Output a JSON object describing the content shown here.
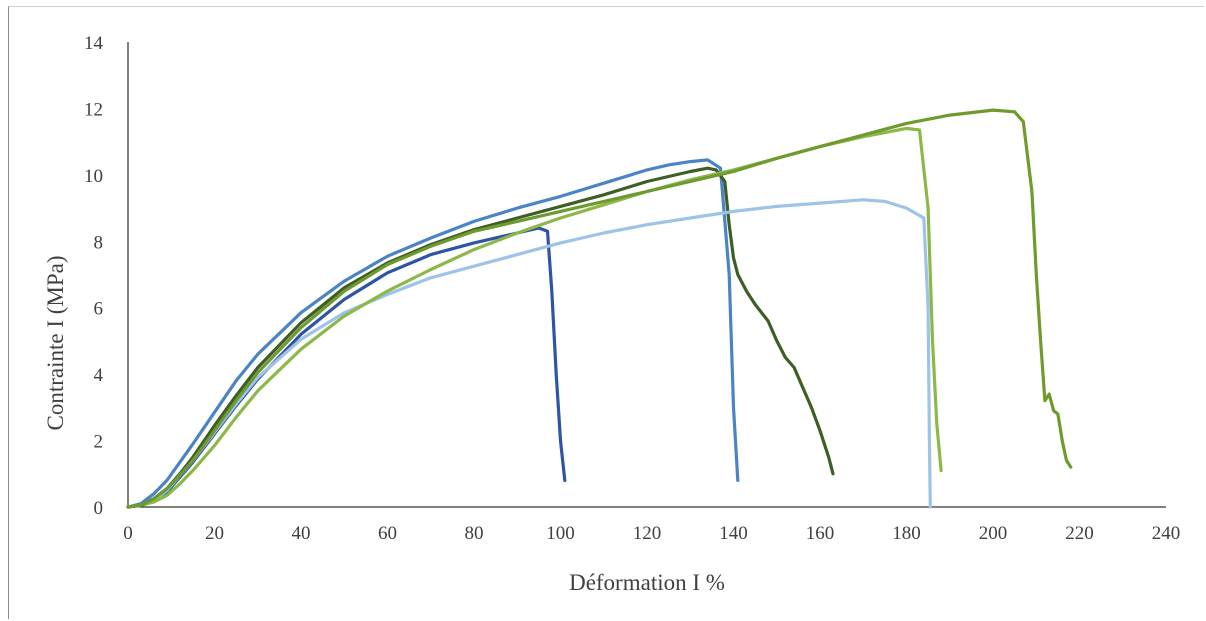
{
  "chart_data": {
    "type": "line",
    "title": "",
    "xlabel": "Déformation I %",
    "ylabel": "Contrainte I (MPa)",
    "xlim": [
      0,
      240
    ],
    "ylim": [
      0,
      14
    ],
    "xticks": [
      0,
      20,
      40,
      60,
      80,
      100,
      120,
      140,
      160,
      180,
      200,
      220,
      240
    ],
    "yticks": [
      0,
      2,
      4,
      6,
      8,
      10,
      12,
      14
    ],
    "grid": false,
    "legend": "none",
    "series": [
      {
        "color": "#2e55a4",
        "x": [
          0,
          3,
          6,
          9,
          12,
          15,
          20,
          25,
          30,
          40,
          50,
          60,
          70,
          80,
          90,
          95,
          97,
          98,
          99,
          100,
          101
        ],
        "y": [
          0,
          0.05,
          0.2,
          0.45,
          0.9,
          1.35,
          2.2,
          3.05,
          3.85,
          5.2,
          6.25,
          7.05,
          7.6,
          7.95,
          8.25,
          8.4,
          8.3,
          6.5,
          4.0,
          2.0,
          0.8
        ]
      },
      {
        "color": "#4a84c4",
        "x": [
          0,
          3,
          6,
          9,
          12,
          15,
          20,
          25,
          30,
          40,
          50,
          60,
          70,
          80,
          90,
          100,
          110,
          120,
          125,
          130,
          134,
          137,
          139,
          140,
          141
        ],
        "y": [
          0,
          0.1,
          0.4,
          0.8,
          1.35,
          1.9,
          2.85,
          3.8,
          4.6,
          5.85,
          6.8,
          7.55,
          8.1,
          8.6,
          9.0,
          9.35,
          9.75,
          10.15,
          10.3,
          10.4,
          10.45,
          10.2,
          7.0,
          3.0,
          0.8
        ]
      },
      {
        "color": "#3d5e25",
        "x": [
          0,
          3,
          6,
          9,
          12,
          15,
          20,
          25,
          30,
          40,
          50,
          60,
          70,
          80,
          90,
          100,
          110,
          120,
          125,
          130,
          134,
          136,
          138,
          139,
          140,
          141,
          143,
          145,
          148,
          150,
          152,
          154,
          156,
          158,
          160,
          162,
          163
        ],
        "y": [
          0,
          0.05,
          0.25,
          0.55,
          1.0,
          1.5,
          2.45,
          3.35,
          4.2,
          5.55,
          6.6,
          7.35,
          7.9,
          8.35,
          8.7,
          9.05,
          9.4,
          9.8,
          9.95,
          10.1,
          10.2,
          10.15,
          9.8,
          8.5,
          7.5,
          7.0,
          6.5,
          6.1,
          5.6,
          5.0,
          4.5,
          4.2,
          3.6,
          3.0,
          2.3,
          1.5,
          1.0
        ]
      },
      {
        "color": "#9dc3e6",
        "x": [
          0,
          3,
          6,
          9,
          12,
          15,
          20,
          25,
          30,
          40,
          50,
          60,
          70,
          80,
          90,
          100,
          110,
          120,
          130,
          140,
          150,
          160,
          170,
          175,
          180,
          184,
          185,
          185.3,
          185.5
        ],
        "y": [
          0,
          0.05,
          0.2,
          0.5,
          0.95,
          1.4,
          2.25,
          3.1,
          3.9,
          5.05,
          5.85,
          6.4,
          6.9,
          7.25,
          7.6,
          7.95,
          8.25,
          8.5,
          8.7,
          8.9,
          9.05,
          9.15,
          9.25,
          9.2,
          9.0,
          8.7,
          6.0,
          2.0,
          0
        ]
      },
      {
        "color": "#8cb84a",
        "x": [
          0,
          3,
          6,
          9,
          12,
          15,
          20,
          25,
          30,
          40,
          50,
          60,
          70,
          80,
          90,
          100,
          110,
          120,
          130,
          140,
          150,
          160,
          170,
          180,
          183,
          185,
          186,
          187,
          188
        ],
        "y": [
          0,
          0.05,
          0.15,
          0.35,
          0.7,
          1.1,
          1.85,
          2.7,
          3.5,
          4.75,
          5.75,
          6.5,
          7.15,
          7.75,
          8.25,
          8.7,
          9.1,
          9.5,
          9.85,
          10.15,
          10.5,
          10.85,
          11.15,
          11.4,
          11.35,
          9.0,
          5.0,
          2.5,
          1.1
        ]
      },
      {
        "color": "#6f9a2e",
        "x": [
          0,
          3,
          6,
          9,
          12,
          15,
          20,
          25,
          30,
          40,
          50,
          60,
          70,
          80,
          90,
          100,
          110,
          120,
          130,
          140,
          150,
          160,
          170,
          180,
          190,
          200,
          205,
          207,
          209,
          210,
          211,
          212,
          213,
          214,
          215,
          216,
          217,
          218
        ],
        "y": [
          0,
          0.05,
          0.25,
          0.55,
          0.95,
          1.4,
          2.3,
          3.2,
          4.05,
          5.4,
          6.5,
          7.3,
          7.85,
          8.3,
          8.6,
          8.9,
          9.2,
          9.5,
          9.8,
          10.1,
          10.5,
          10.85,
          11.2,
          11.55,
          11.8,
          11.95,
          11.9,
          11.6,
          9.5,
          7.0,
          5.0,
          3.2,
          3.4,
          2.9,
          2.8,
          2.0,
          1.4,
          1.2
        ]
      }
    ]
  }
}
